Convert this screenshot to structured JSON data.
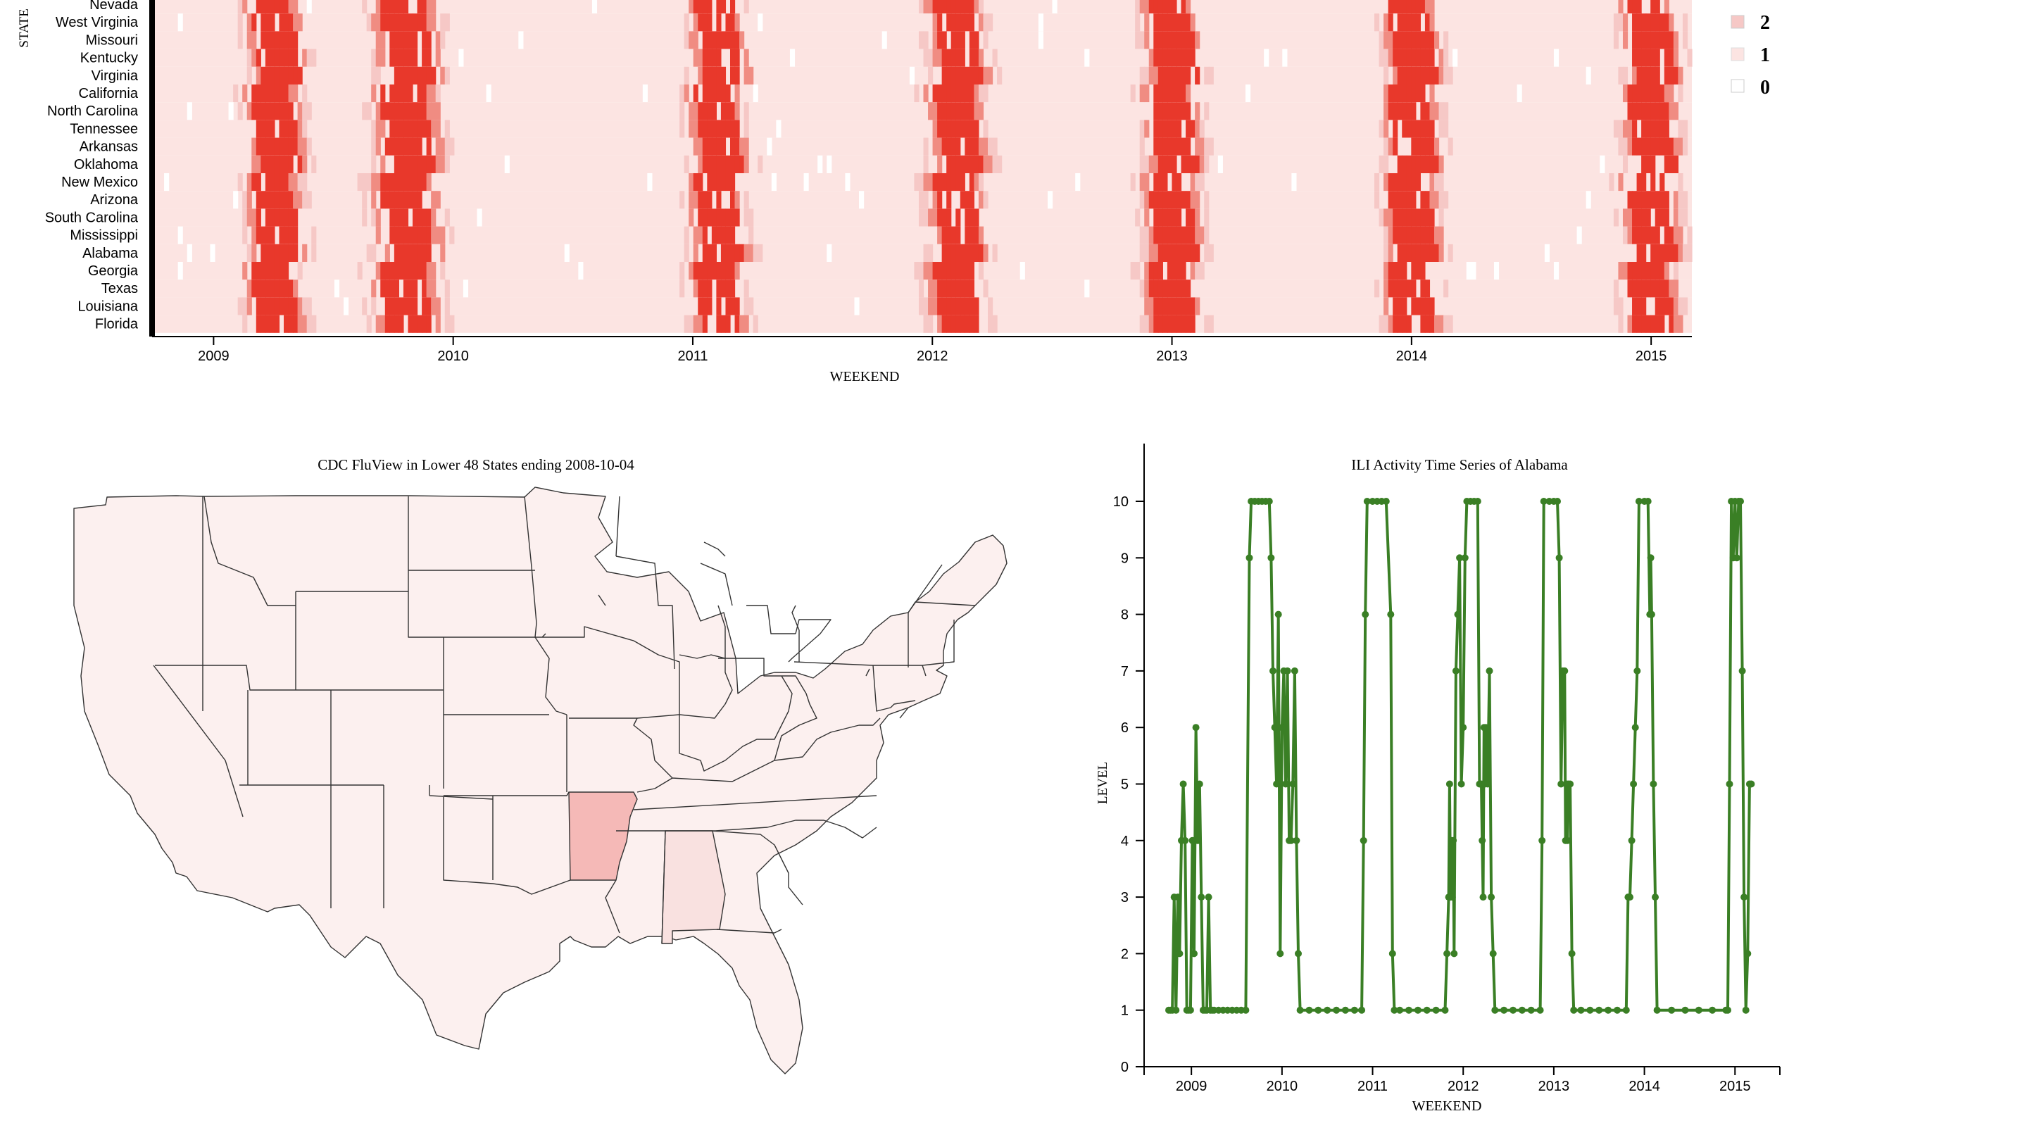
{
  "colors": {
    "level_0": "#ffffff",
    "level_1": "#fce4e2",
    "level_2": "#f6c8c6",
    "level_high": "#e8382b",
    "level_mid": "#f08c82",
    "line": "#3a7f25",
    "map_default": "#fcf0ef",
    "map_alabama": "#f9e1e0",
    "map_arkansas": "#f5b9b7"
  },
  "heatmap": {
    "y_axis_label": "STATE",
    "x_axis_label": "WEEKEND",
    "x_ticks": [
      "2009",
      "2010",
      "2011",
      "2012",
      "2013",
      "2014",
      "2015"
    ],
    "states": [
      "Nevada",
      "West Virginia",
      "Missouri",
      "Kentucky",
      "Virginia",
      "California",
      "North Carolina",
      "Tennessee",
      "Arkansas",
      "Oklahoma",
      "New Mexico",
      "Arizona",
      "South Carolina",
      "Mississippi",
      "Alabama",
      "Georgia",
      "Texas",
      "Louisiana",
      "Florida"
    ],
    "legend": [
      {
        "label": "2",
        "color_key": "level_2"
      },
      {
        "label": "1",
        "color_key": "level_1"
      },
      {
        "label": "0",
        "color_key": "level_0"
      }
    ]
  },
  "map": {
    "title": "CDC FluView in Lower 48 States ending 2008-10-04",
    "highlighted": [
      "Arkansas",
      "Alabama"
    ]
  },
  "chart_data": [
    {
      "type": "heatmap",
      "x_label": "WEEKEND",
      "y_label": "STATE",
      "x_range": [
        "2008-10-04",
        "2015-03-07"
      ],
      "rows": [
        "Nevada",
        "West Virginia",
        "Missouri",
        "Kentucky",
        "Virginia",
        "California",
        "North Carolina",
        "Tennessee",
        "Arkansas",
        "Oklahoma",
        "New Mexico",
        "Arizona",
        "South Carolina",
        "Mississippi",
        "Alabama",
        "Georgia",
        "Texas",
        "Louisiana",
        "Florida"
      ],
      "season_peaks": [
        2009.25,
        2009.8,
        2011.1,
        2012.1,
        2013.0,
        2014.0,
        2015.0
      ],
      "legend": [
        "2",
        "1",
        "0"
      ]
    },
    {
      "type": "line",
      "title": "ILI Activity Time Series of Alabama",
      "xlabel": "WEEKEND",
      "ylabel": "LEVEL",
      "ylim": [
        0,
        10
      ],
      "xlim": [
        2008.75,
        2015.2
      ],
      "x_ticks": [
        "2009",
        "2010",
        "2011",
        "2012",
        "2013",
        "2014",
        "2015"
      ],
      "y_ticks": [
        0,
        1,
        2,
        3,
        4,
        5,
        6,
        7,
        8,
        9,
        10
      ],
      "points": [
        [
          2008.75,
          1
        ],
        [
          2008.77,
          1
        ],
        [
          2008.79,
          1
        ],
        [
          2008.81,
          3
        ],
        [
          2008.83,
          1
        ],
        [
          2008.85,
          3
        ],
        [
          2008.87,
          2
        ],
        [
          2008.89,
          4
        ],
        [
          2008.91,
          5
        ],
        [
          2008.93,
          4
        ],
        [
          2008.95,
          1
        ],
        [
          2008.97,
          1
        ],
        [
          2008.99,
          1
        ],
        [
          2009.01,
          4
        ],
        [
          2009.03,
          2
        ],
        [
          2009.05,
          6
        ],
        [
          2009.07,
          4
        ],
        [
          2009.09,
          5
        ],
        [
          2009.11,
          3
        ],
        [
          2009.13,
          1
        ],
        [
          2009.15,
          1
        ],
        [
          2009.17,
          1
        ],
        [
          2009.19,
          3
        ],
        [
          2009.21,
          1
        ],
        [
          2009.23,
          1
        ],
        [
          2009.25,
          1
        ],
        [
          2009.3,
          1
        ],
        [
          2009.35,
          1
        ],
        [
          2009.4,
          1
        ],
        [
          2009.45,
          1
        ],
        [
          2009.5,
          1
        ],
        [
          2009.55,
          1
        ],
        [
          2009.6,
          1
        ],
        [
          2009.64,
          9
        ],
        [
          2009.66,
          10
        ],
        [
          2009.7,
          10
        ],
        [
          2009.74,
          10
        ],
        [
          2009.78,
          10
        ],
        [
          2009.82,
          10
        ],
        [
          2009.86,
          10
        ],
        [
          2009.88,
          9
        ],
        [
          2009.9,
          7
        ],
        [
          2009.92,
          6
        ],
        [
          2009.94,
          5
        ],
        [
          2009.96,
          8
        ],
        [
          2009.98,
          2
        ],
        [
          2010.0,
          6
        ],
        [
          2010.02,
          7
        ],
        [
          2010.04,
          5
        ],
        [
          2010.06,
          7
        ],
        [
          2010.08,
          4
        ],
        [
          2010.1,
          4
        ],
        [
          2010.12,
          5
        ],
        [
          2010.14,
          7
        ],
        [
          2010.16,
          4
        ],
        [
          2010.18,
          2
        ],
        [
          2010.2,
          1
        ],
        [
          2010.3,
          1
        ],
        [
          2010.4,
          1
        ],
        [
          2010.5,
          1
        ],
        [
          2010.6,
          1
        ],
        [
          2010.7,
          1
        ],
        [
          2010.8,
          1
        ],
        [
          2010.88,
          1
        ],
        [
          2010.9,
          4
        ],
        [
          2010.92,
          8
        ],
        [
          2010.94,
          10
        ],
        [
          2011.0,
          10
        ],
        [
          2011.05,
          10
        ],
        [
          2011.1,
          10
        ],
        [
          2011.15,
          10
        ],
        [
          2011.2,
          8
        ],
        [
          2011.22,
          2
        ],
        [
          2011.24,
          1
        ],
        [
          2011.3,
          1
        ],
        [
          2011.4,
          1
        ],
        [
          2011.5,
          1
        ],
        [
          2011.6,
          1
        ],
        [
          2011.7,
          1
        ],
        [
          2011.8,
          1
        ],
        [
          2011.82,
          2
        ],
        [
          2011.84,
          3
        ],
        [
          2011.85,
          5
        ],
        [
          2011.86,
          3
        ],
        [
          2011.87,
          4
        ],
        [
          2011.88,
          3
        ],
        [
          2011.89,
          4
        ],
        [
          2011.9,
          2
        ],
        [
          2011.92,
          7
        ],
        [
          2011.94,
          8
        ],
        [
          2011.96,
          9
        ],
        [
          2011.98,
          5
        ],
        [
          2012.0,
          6
        ],
        [
          2012.02,
          9
        ],
        [
          2012.04,
          10
        ],
        [
          2012.08,
          10
        ],
        [
          2012.12,
          10
        ],
        [
          2012.16,
          10
        ],
        [
          2012.18,
          5
        ],
        [
          2012.2,
          5
        ],
        [
          2012.21,
          4
        ],
        [
          2012.22,
          3
        ],
        [
          2012.23,
          6
        ],
        [
          2012.24,
          5
        ],
        [
          2012.25,
          6
        ],
        [
          2012.27,
          5
        ],
        [
          2012.29,
          7
        ],
        [
          2012.31,
          3
        ],
        [
          2012.33,
          2
        ],
        [
          2012.35,
          1
        ],
        [
          2012.45,
          1
        ],
        [
          2012.55,
          1
        ],
        [
          2012.65,
          1
        ],
        [
          2012.75,
          1
        ],
        [
          2012.85,
          1
        ],
        [
          2012.87,
          4
        ],
        [
          2012.89,
          10
        ],
        [
          2012.95,
          10
        ],
        [
          2013.0,
          10
        ],
        [
          2013.04,
          10
        ],
        [
          2013.06,
          9
        ],
        [
          2013.08,
          5
        ],
        [
          2013.1,
          7
        ],
        [
          2013.12,
          7
        ],
        [
          2013.13,
          4
        ],
        [
          2013.14,
          5
        ],
        [
          2013.15,
          4
        ],
        [
          2013.16,
          5
        ],
        [
          2013.18,
          5
        ],
        [
          2013.2,
          2
        ],
        [
          2013.22,
          1
        ],
        [
          2013.3,
          1
        ],
        [
          2013.4,
          1
        ],
        [
          2013.5,
          1
        ],
        [
          2013.6,
          1
        ],
        [
          2013.7,
          1
        ],
        [
          2013.8,
          1
        ],
        [
          2013.82,
          3
        ],
        [
          2013.84,
          3
        ],
        [
          2013.86,
          4
        ],
        [
          2013.88,
          5
        ],
        [
          2013.9,
          6
        ],
        [
          2013.92,
          7
        ],
        [
          2013.94,
          10
        ],
        [
          2014.0,
          10
        ],
        [
          2014.04,
          10
        ],
        [
          2014.06,
          8
        ],
        [
          2014.07,
          9
        ],
        [
          2014.08,
          8
        ],
        [
          2014.1,
          5
        ],
        [
          2014.12,
          3
        ],
        [
          2014.14,
          1
        ],
        [
          2014.3,
          1
        ],
        [
          2014.45,
          1
        ],
        [
          2014.6,
          1
        ],
        [
          2014.75,
          1
        ],
        [
          2014.9,
          1
        ],
        [
          2014.92,
          1
        ],
        [
          2014.94,
          5
        ],
        [
          2014.96,
          10
        ],
        [
          2014.98,
          9
        ],
        [
          2015.0,
          10
        ],
        [
          2015.02,
          9
        ],
        [
          2015.04,
          10
        ],
        [
          2015.06,
          10
        ],
        [
          2015.08,
          7
        ],
        [
          2015.1,
          3
        ],
        [
          2015.12,
          1
        ],
        [
          2015.14,
          2
        ],
        [
          2015.16,
          5
        ],
        [
          2015.18,
          5
        ]
      ]
    }
  ],
  "line_chart": {
    "title": "ILI Activity Time Series of Alabama",
    "x_axis_label": "WEEKEND",
    "y_axis_label": "LEVEL"
  }
}
